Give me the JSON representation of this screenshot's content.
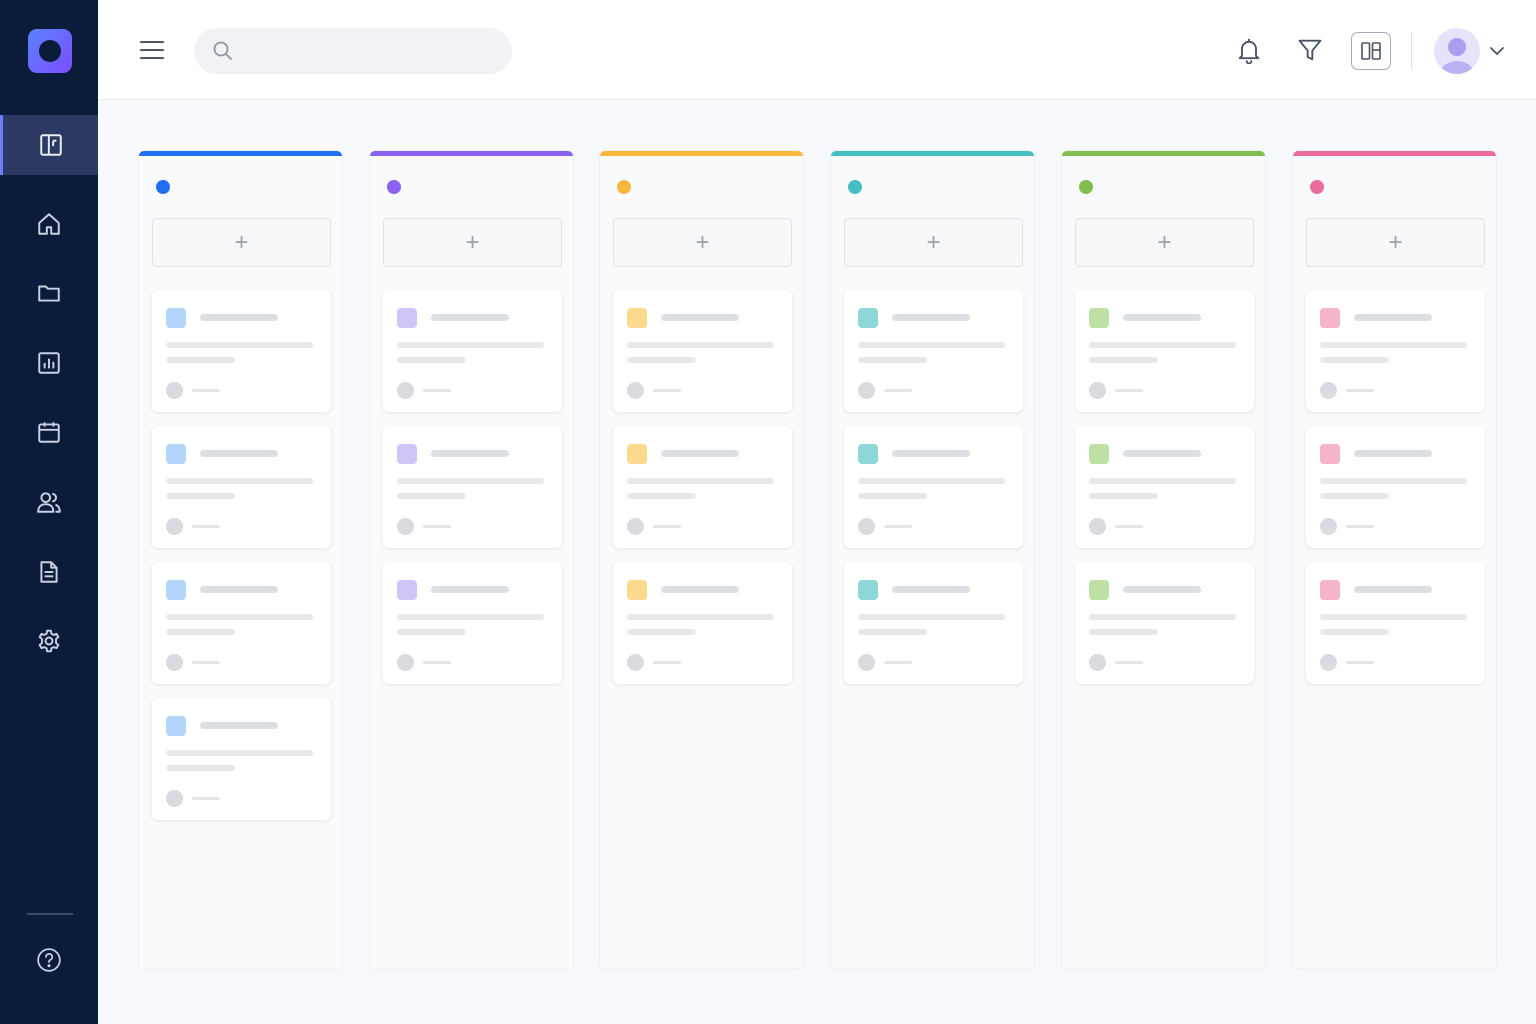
{
  "app": {
    "brand_color": "#6a5cff",
    "sidebar_bg": "#0b1b3a"
  },
  "sidebar": {
    "items": [
      {
        "icon": "board-icon",
        "active": true
      },
      {
        "icon": "home-icon",
        "active": false
      },
      {
        "icon": "folder-icon",
        "active": false
      },
      {
        "icon": "chart-icon",
        "active": false
      },
      {
        "icon": "calendar-icon",
        "active": false
      },
      {
        "icon": "users-icon",
        "active": false
      },
      {
        "icon": "document-icon",
        "active": false
      },
      {
        "icon": "gear-icon",
        "active": false
      }
    ],
    "footer_icon": "help-icon"
  },
  "topbar": {
    "search": {
      "value": "",
      "placeholder": ""
    },
    "icons": [
      "menu-icon",
      "search-icon",
      "bell-icon",
      "filter-icon",
      "layout-icon",
      "avatar",
      "chevron-down-icon"
    ]
  },
  "board": {
    "add_label": "+",
    "columns": [
      {
        "color": "#1f6ff0",
        "chip": "#b3d4fb",
        "cards": 4
      },
      {
        "color": "#8a63f2",
        "chip": "#d3c4f7",
        "cards": 3
      },
      {
        "color": "#f6b73a",
        "chip": "#fbd98d",
        "cards": 3
      },
      {
        "color": "#45bec4",
        "chip": "#8fd6d8",
        "cards": 3
      },
      {
        "color": "#82bd4f",
        "chip": "#bfe0a5",
        "cards": 3
      },
      {
        "color": "#ec6c9c",
        "chip": "#f6b4cb",
        "cards": 3
      }
    ]
  }
}
